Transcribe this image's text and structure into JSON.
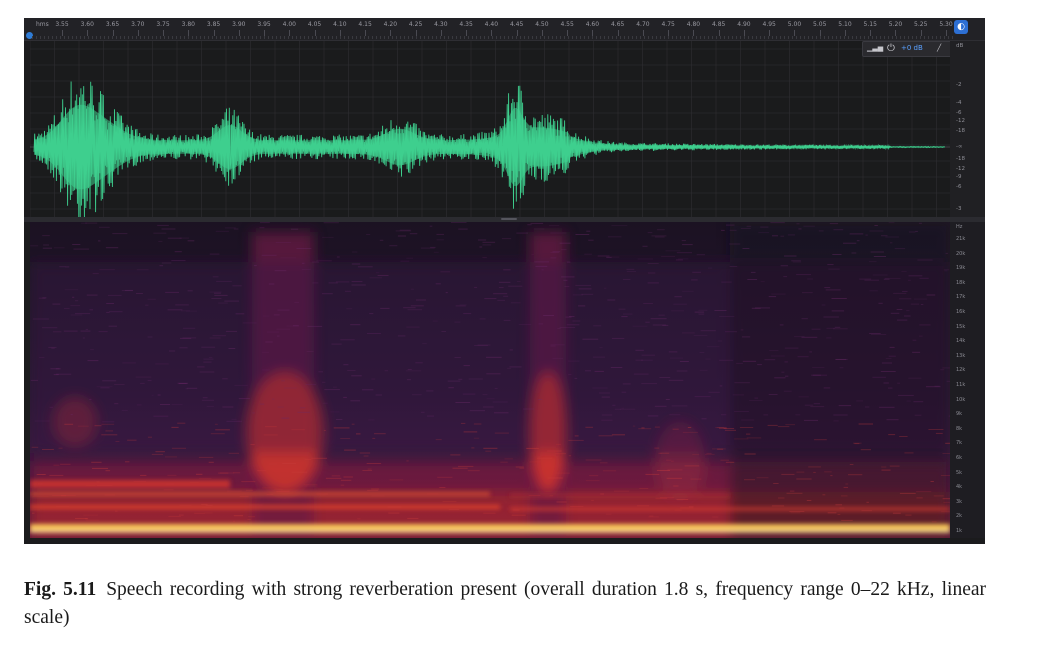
{
  "ruler": {
    "unit": "hms",
    "ticks": [
      "3.55",
      "3.60",
      "3.65",
      "3.70",
      "3.75",
      "3.80",
      "3.85",
      "3.90",
      "3.95",
      "4.00",
      "4.05",
      "4.10",
      "4.15",
      "4.20",
      "4.25",
      "4.30",
      "4.35",
      "4.40",
      "4.45",
      "4.50",
      "4.55",
      "4.60",
      "4.65",
      "4.70",
      "4.75",
      "4.80",
      "4.85",
      "4.90",
      "4.95",
      "5.00",
      "5.05",
      "5.10",
      "5.15",
      "5.20",
      "5.25",
      "5.30"
    ]
  },
  "level_toolbar": {
    "power_icon": "power-icon",
    "value": "+0 dB"
  },
  "db_scale": {
    "unit": "dB",
    "labels": [
      "-2",
      "-4",
      "-6",
      "-12",
      "-18",
      "-∞",
      "-18",
      "-12",
      "-9",
      "-6",
      "-3"
    ]
  },
  "hz_scale": {
    "unit": "Hz",
    "labels": [
      "21k",
      "20k",
      "19k",
      "18k",
      "17k",
      "16k",
      "15k",
      "14k",
      "13k",
      "12k",
      "11k",
      "10k",
      "9k",
      "8k",
      "7k",
      "6k",
      "5k",
      "4k",
      "3k",
      "2k",
      "1k"
    ]
  },
  "caption": {
    "label": "Fig. 5.11",
    "text": "Speech recording with strong reverberation present (overall duration 1.8 s, frequency range 0–22 kHz, linear scale)"
  },
  "colors": {
    "waveform": "#3ecf8e",
    "accent": "#2d6fd3",
    "background": "#1b1b1d"
  }
}
